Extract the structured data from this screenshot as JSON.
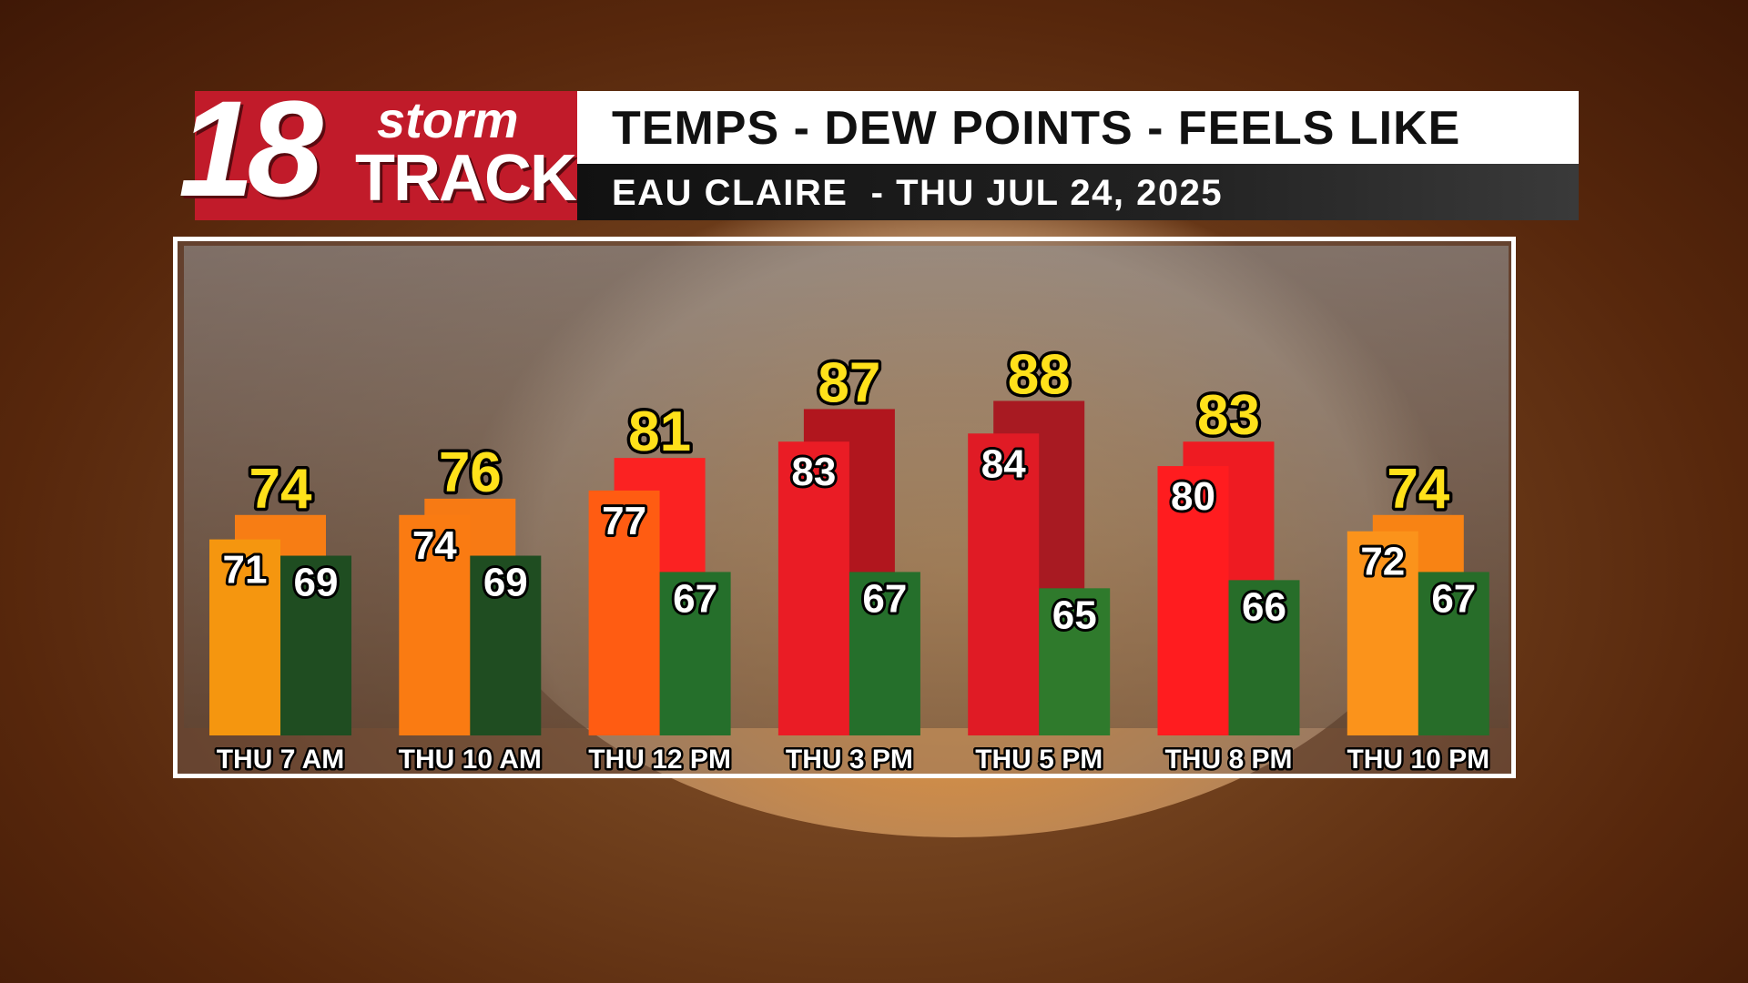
{
  "header": {
    "logo_number": "18",
    "logo_word_top": "storm",
    "logo_word_bottom": "TRACK",
    "title": "TEMPS - DEW POINTS - FEELS LIKE",
    "subtitle": "EAU CLAIRE  - THU JUL 24, 2025"
  },
  "chart_data": {
    "type": "bar",
    "title": "TEMPS - DEW POINTS - FEELS LIKE",
    "xlabel": "",
    "ylabel": "",
    "categories": [
      "THU 7 AM",
      "THU 10 AM",
      "THU 12 PM",
      "THU 3 PM",
      "THU 5 PM",
      "THU 8 PM",
      "THU 10 PM"
    ],
    "series": [
      {
        "values": [
          74,
          76,
          81,
          87,
          88,
          83,
          74
        ]
      },
      {
        "values": [
          71,
          74,
          77,
          83,
          84,
          80,
          72
        ]
      },
      {
        "values": [
          69,
          69,
          67,
          67,
          65,
          66,
          67
        ]
      }
    ],
    "colors": {
      "temp": [
        "#f5960f",
        "#fa7b12",
        "#ff5c12",
        "#ea1c25",
        "#e01b25",
        "#ff1c1f",
        "#fb931b"
      ],
      "feels": [
        "#f77d14",
        "#f77a14",
        "#fb2222",
        "#b1161e",
        "#a81a22",
        "#ee1b22",
        "#f88314"
      ],
      "dew": [
        "#1f4d21",
        "#1f4d21",
        "#256f2b",
        "#256f2b",
        "#2f7a2c",
        "#276d29",
        "#276d29"
      ],
      "temp_label": "#ffffff",
      "feels_label": "#ffe11a"
    },
    "grid": false,
    "legend": "none"
  }
}
